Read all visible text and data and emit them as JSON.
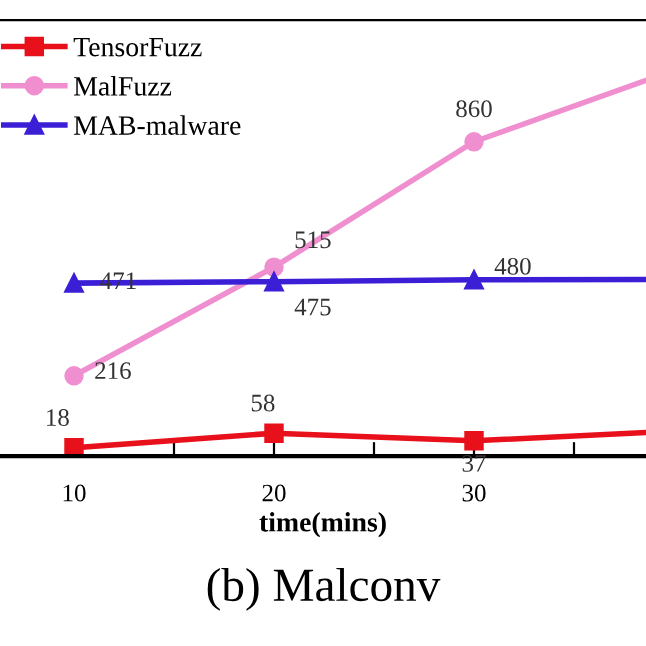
{
  "chart_data": {
    "type": "line",
    "x": [
      10,
      20,
      30,
      38.6
    ],
    "xlim": [
      6.3,
      38.6
    ],
    "ylim": [
      -5,
      1195
    ],
    "xticks": [
      10,
      {
        "value": 15,
        "label": null
      },
      20,
      {
        "value": 25,
        "label": null
      },
      30,
      {
        "value": 35,
        "label": null
      }
    ],
    "tick_labels": "x",
    "xlabel": "time(mins)",
    "annotations": [
      "(b) Malconv"
    ],
    "series": [
      {
        "name": "TensorFuzz",
        "color": "#e8101a",
        "marker": "square",
        "values": [
          18,
          58,
          37,
          60
        ],
        "value_labels": [
          "18",
          "58",
          "37",
          null
        ]
      },
      {
        "name": "MalFuzz",
        "color": "#f08fcf",
        "marker": "circle",
        "values": [
          216,
          515,
          860,
          1029
        ],
        "value_labels": [
          "216",
          "515",
          "860",
          null
        ]
      },
      {
        "name": "MAB-malware",
        "color": "#3b1fd6",
        "marker": "triangle",
        "values": [
          471,
          475,
          480,
          481
        ],
        "value_labels": [
          "471",
          "475",
          "480",
          null
        ]
      }
    ],
    "legend": "top left",
    "grid": false
  }
}
